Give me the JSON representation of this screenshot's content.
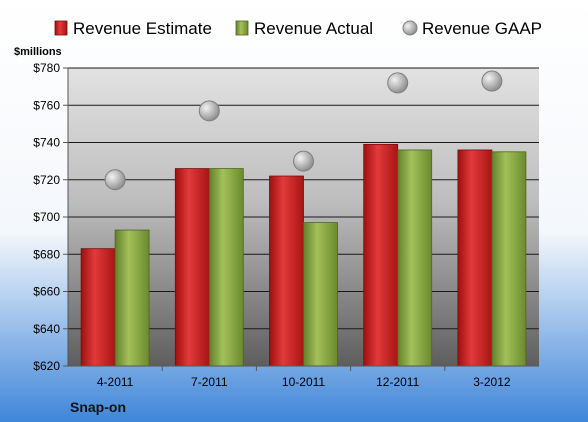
{
  "chart_data": {
    "type": "bar",
    "title": "",
    "unit_label": "$millions",
    "company": "Snap-on",
    "categories": [
      "4-2011",
      "7-2011",
      "10-2011",
      "12-2011",
      "3-2012"
    ],
    "series": [
      {
        "name": "Revenue Estimate",
        "kind": "bar",
        "color": "#cc1f1f",
        "values": [
          683,
          726,
          722,
          739,
          736
        ]
      },
      {
        "name": "Revenue Actual",
        "kind": "bar",
        "color": "#8aa640",
        "values": [
          693,
          726,
          697,
          736,
          735
        ]
      },
      {
        "name": "Revenue GAAP",
        "kind": "marker",
        "color": "#b0b0b0",
        "values": [
          720,
          757,
          730,
          772,
          773
        ]
      }
    ],
    "yticks": [
      "$620",
      "$640",
      "$660",
      "$680",
      "$700",
      "$720",
      "$740",
      "$760",
      "$780"
    ],
    "ylim": [
      620,
      780
    ],
    "grid": true,
    "legend": "top"
  },
  "colors": {
    "background_top": "#ffffff",
    "background_bottom": "#3f86d9",
    "plot_top": "#e0e0e0",
    "plot_bottom": "#606060"
  }
}
